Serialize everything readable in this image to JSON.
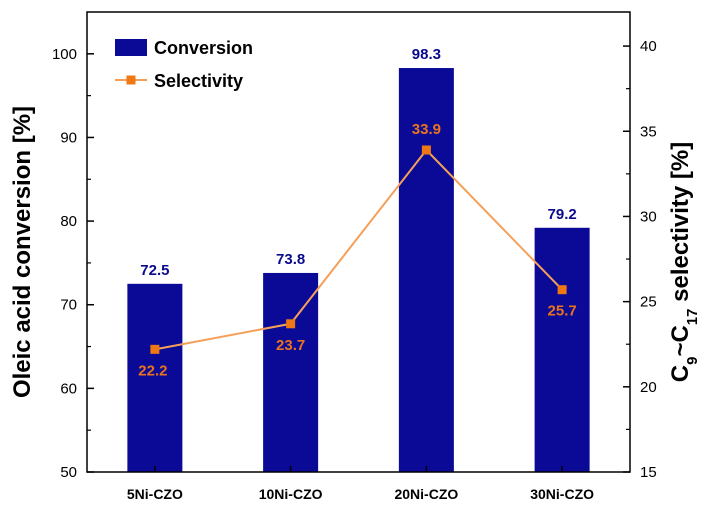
{
  "chart_data": {
    "type": "bar",
    "categories": [
      "5Ni-CZO",
      "10Ni-CZO",
      "20Ni-CZO",
      "30Ni-CZO"
    ],
    "series": [
      {
        "name": "Conversion",
        "type": "bar",
        "axis": "left",
        "values": [
          72.5,
          73.8,
          98.3,
          79.2
        ],
        "labels": [
          "72.5",
          "73.8",
          "98.3",
          "79.2"
        ],
        "color": "#0a0a96",
        "label_color": "#0a0a8c"
      },
      {
        "name": "Selectivity",
        "type": "line",
        "axis": "right",
        "values": [
          22.2,
          23.7,
          33.9,
          25.7
        ],
        "labels": [
          "22.2",
          "23.7",
          "33.9",
          "25.7"
        ],
        "color": "#f5a05a",
        "marker_color": "#f07814",
        "label_color": "#e8731e"
      }
    ],
    "ylabel_left": "Oleic acid conversion [%]",
    "ylabel_right": {
      "prefix": "C",
      "sub1": "9",
      "mid": "~C",
      "sub2": "17",
      "suffix": " selectivity [%]"
    },
    "ylim_left": [
      50,
      105
    ],
    "yticks_left": [
      50,
      60,
      70,
      80,
      90,
      100
    ],
    "ylim_right": [
      15,
      42
    ],
    "yticks_right": [
      15,
      20,
      25,
      30,
      35,
      40
    ],
    "legend_position": "top-left",
    "grid": false
  }
}
